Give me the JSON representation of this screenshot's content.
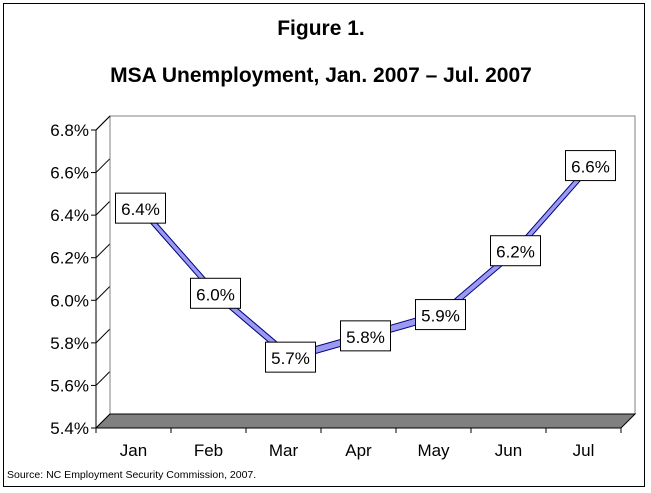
{
  "title": "Figure 1.",
  "subtitle": "MSA Unemployment, Jan. 2007 – Jul. 2007",
  "source": "Source: NC Employment Security Commission, 2007.",
  "chart_data": {
    "type": "line",
    "categories": [
      "Jan",
      "Feb",
      "Mar",
      "Apr",
      "May",
      "Jun",
      "Jul"
    ],
    "values": [
      6.4,
      6.0,
      5.7,
      5.8,
      5.9,
      6.2,
      6.6
    ],
    "data_labels": [
      "6.4%",
      "6.0%",
      "5.7%",
      "5.8%",
      "5.9%",
      "6.2%",
      "6.6%"
    ],
    "y_ticks": [
      5.4,
      5.6,
      5.8,
      6.0,
      6.2,
      6.4,
      6.6,
      6.8
    ],
    "y_tick_labels": [
      "5.4%",
      "5.6%",
      "5.8%",
      "6.0%",
      "6.2%",
      "6.4%",
      "6.6%",
      "6.8%"
    ],
    "ylim": [
      5.4,
      6.8
    ],
    "xlabel": "",
    "ylabel": "",
    "grid": true,
    "legend": "none",
    "colors": {
      "line": "#9a9af0",
      "line_edge": "#000080",
      "floor": "#808080"
    }
  }
}
